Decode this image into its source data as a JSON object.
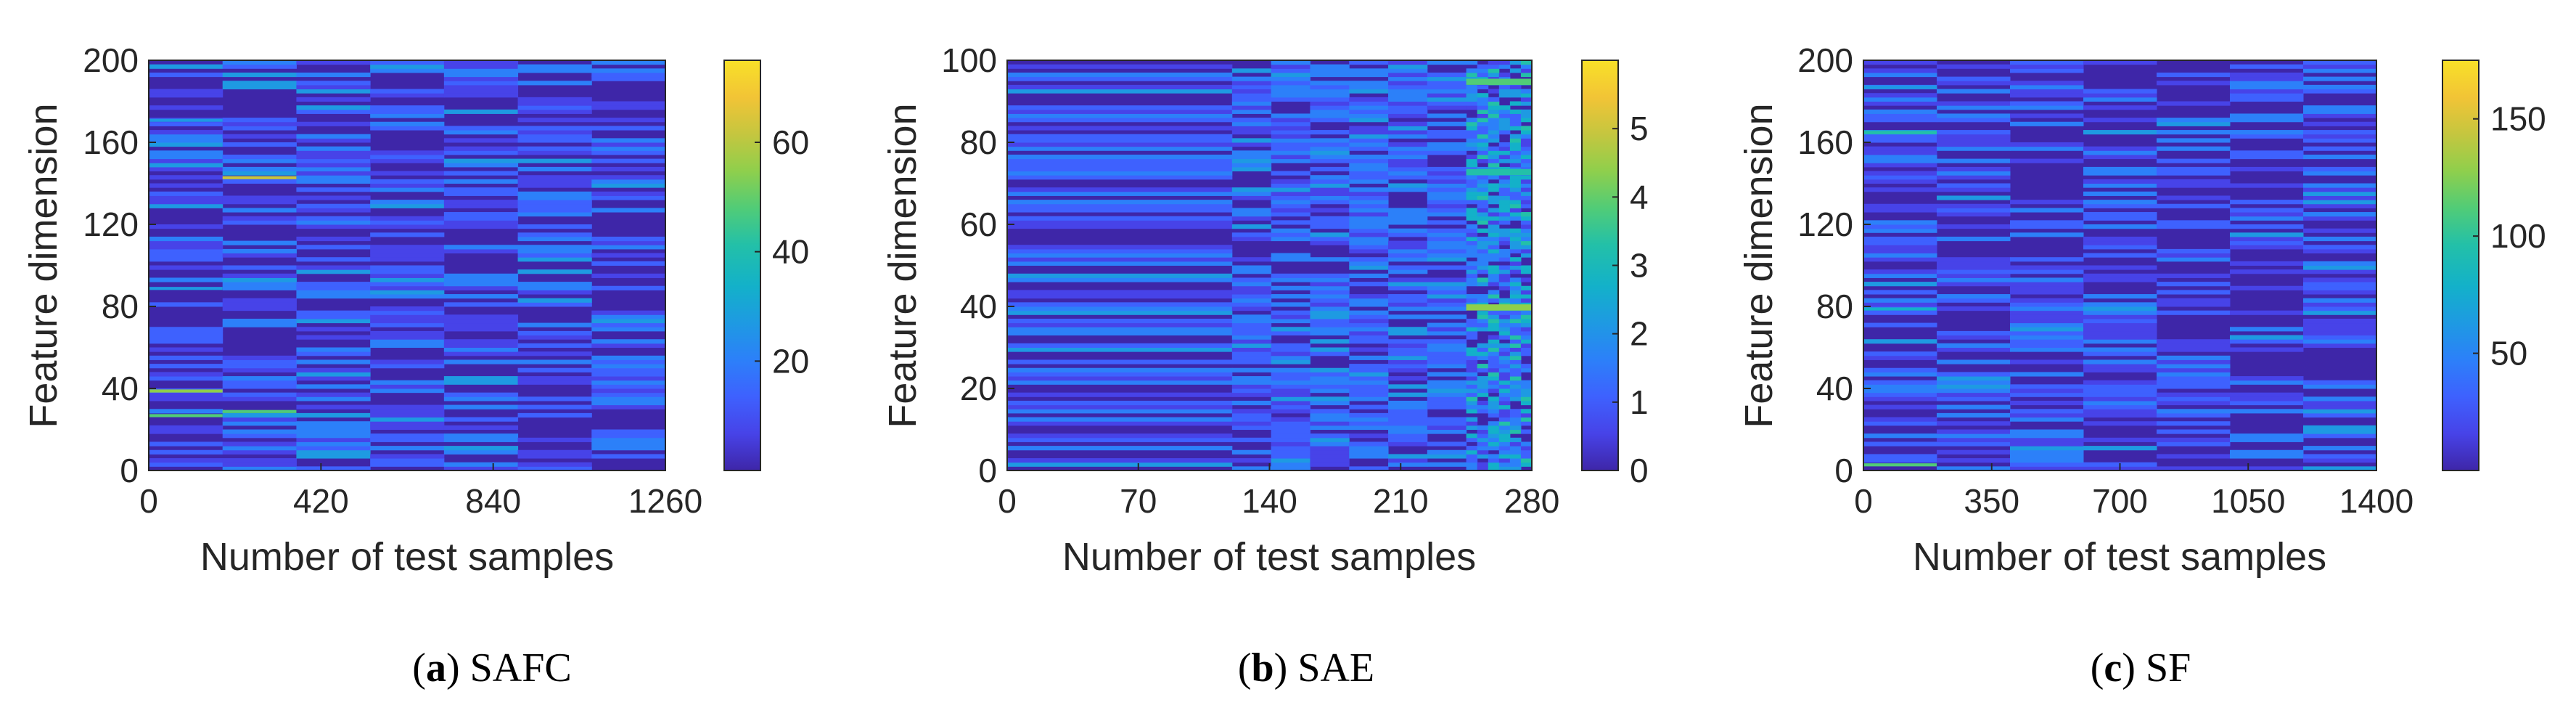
{
  "figure": {
    "panels": [
      {
        "id": "a",
        "caption_letter": "a",
        "caption_text": "SAFC"
      },
      {
        "id": "b",
        "caption_letter": "b",
        "caption_text": "SAE"
      },
      {
        "id": "c",
        "caption_letter": "c",
        "caption_text": "SF"
      }
    ]
  },
  "colors": {
    "colormap": [
      "#3e26a8",
      "#4743e8",
      "#3e61fe",
      "#2c80f9",
      "#1e9ae2",
      "#13b1c9",
      "#23c0a8",
      "#51cc77",
      "#8fcf4c",
      "#c5c63f",
      "#f2c436",
      "#f8e128"
    ],
    "axis": "#262626",
    "background_low": "#3e26a8"
  },
  "chart_data": [
    {
      "type": "heatmap",
      "title": "SAFC",
      "xlabel": "Number of test samples",
      "ylabel": "Feature dimension",
      "xlim": [
        0,
        1260
      ],
      "ylim": [
        0,
        200
      ],
      "xticks": [
        "0",
        "420",
        "840",
        "1260"
      ],
      "yticks": [
        "0",
        "40",
        "80",
        "120",
        "160",
        "200"
      ],
      "clim": [
        0,
        75
      ],
      "colorbar_ticks": [
        "20",
        "40",
        "60"
      ],
      "segments": [
        180,
        180,
        180,
        180,
        180,
        180,
        180
      ],
      "rows": 200,
      "bright_stripes": [
        {
          "x": [
            0,
            180
          ],
          "y": 26,
          "value": 50
        },
        {
          "x": [
            0,
            180
          ],
          "y": 38,
          "value": 55
        },
        {
          "x": [
            180,
            360
          ],
          "y": 142,
          "value": 62
        },
        {
          "x": [
            180,
            360
          ],
          "y": 28,
          "value": 45
        },
        {
          "x": [
            0,
            180
          ],
          "y": 88,
          "value": 28
        },
        {
          "x": [
            0,
            180
          ],
          "y": 170,
          "value": 25
        }
      ]
    },
    {
      "type": "heatmap",
      "title": "SAE",
      "xlabel": "Number of test samples",
      "ylabel": "Feature dimension",
      "xlim": [
        0,
        280
      ],
      "ylim": [
        0,
        100
      ],
      "xticks": [
        "0",
        "70",
        "140",
        "210",
        "280"
      ],
      "yticks": [
        "0",
        "20",
        "40",
        "60",
        "80",
        "100"
      ],
      "clim": [
        0,
        6
      ],
      "colorbar_ticks": [
        "0",
        "1",
        "2",
        "3",
        "4",
        "5"
      ],
      "segments": [
        120,
        125,
        35
      ],
      "rows": 100,
      "bright_stripes": [
        {
          "x": [
            245,
            280
          ],
          "y": 39,
          "value": 4.6
        },
        {
          "x": [
            245,
            280
          ],
          "y": 94,
          "value": 3.8
        },
        {
          "x": [
            245,
            280
          ],
          "y": 72,
          "value": 3.5
        }
      ]
    },
    {
      "type": "heatmap",
      "title": "SF",
      "xlabel": "Number of test samples",
      "ylabel": "Feature dimension",
      "xlim": [
        0,
        1400
      ],
      "ylim": [
        0,
        200
      ],
      "xticks": [
        "0",
        "350",
        "700",
        "1050",
        "1400"
      ],
      "yticks": [
        "0",
        "40",
        "80",
        "120",
        "160",
        "200"
      ],
      "clim": [
        0,
        175
      ],
      "colorbar_ticks": [
        "50",
        "100",
        "150"
      ],
      "segments": [
        200,
        200,
        200,
        200,
        200,
        200,
        200
      ],
      "rows": 200,
      "bright_stripes": [
        {
          "x": [
            0,
            200
          ],
          "y": 2,
          "value": 110
        },
        {
          "x": [
            0,
            200
          ],
          "y": 164,
          "value": 100
        },
        {
          "x": [
            0,
            200
          ],
          "y": 186,
          "value": 70
        },
        {
          "x": [
            0,
            200
          ],
          "y": 78,
          "value": 75
        }
      ]
    }
  ]
}
